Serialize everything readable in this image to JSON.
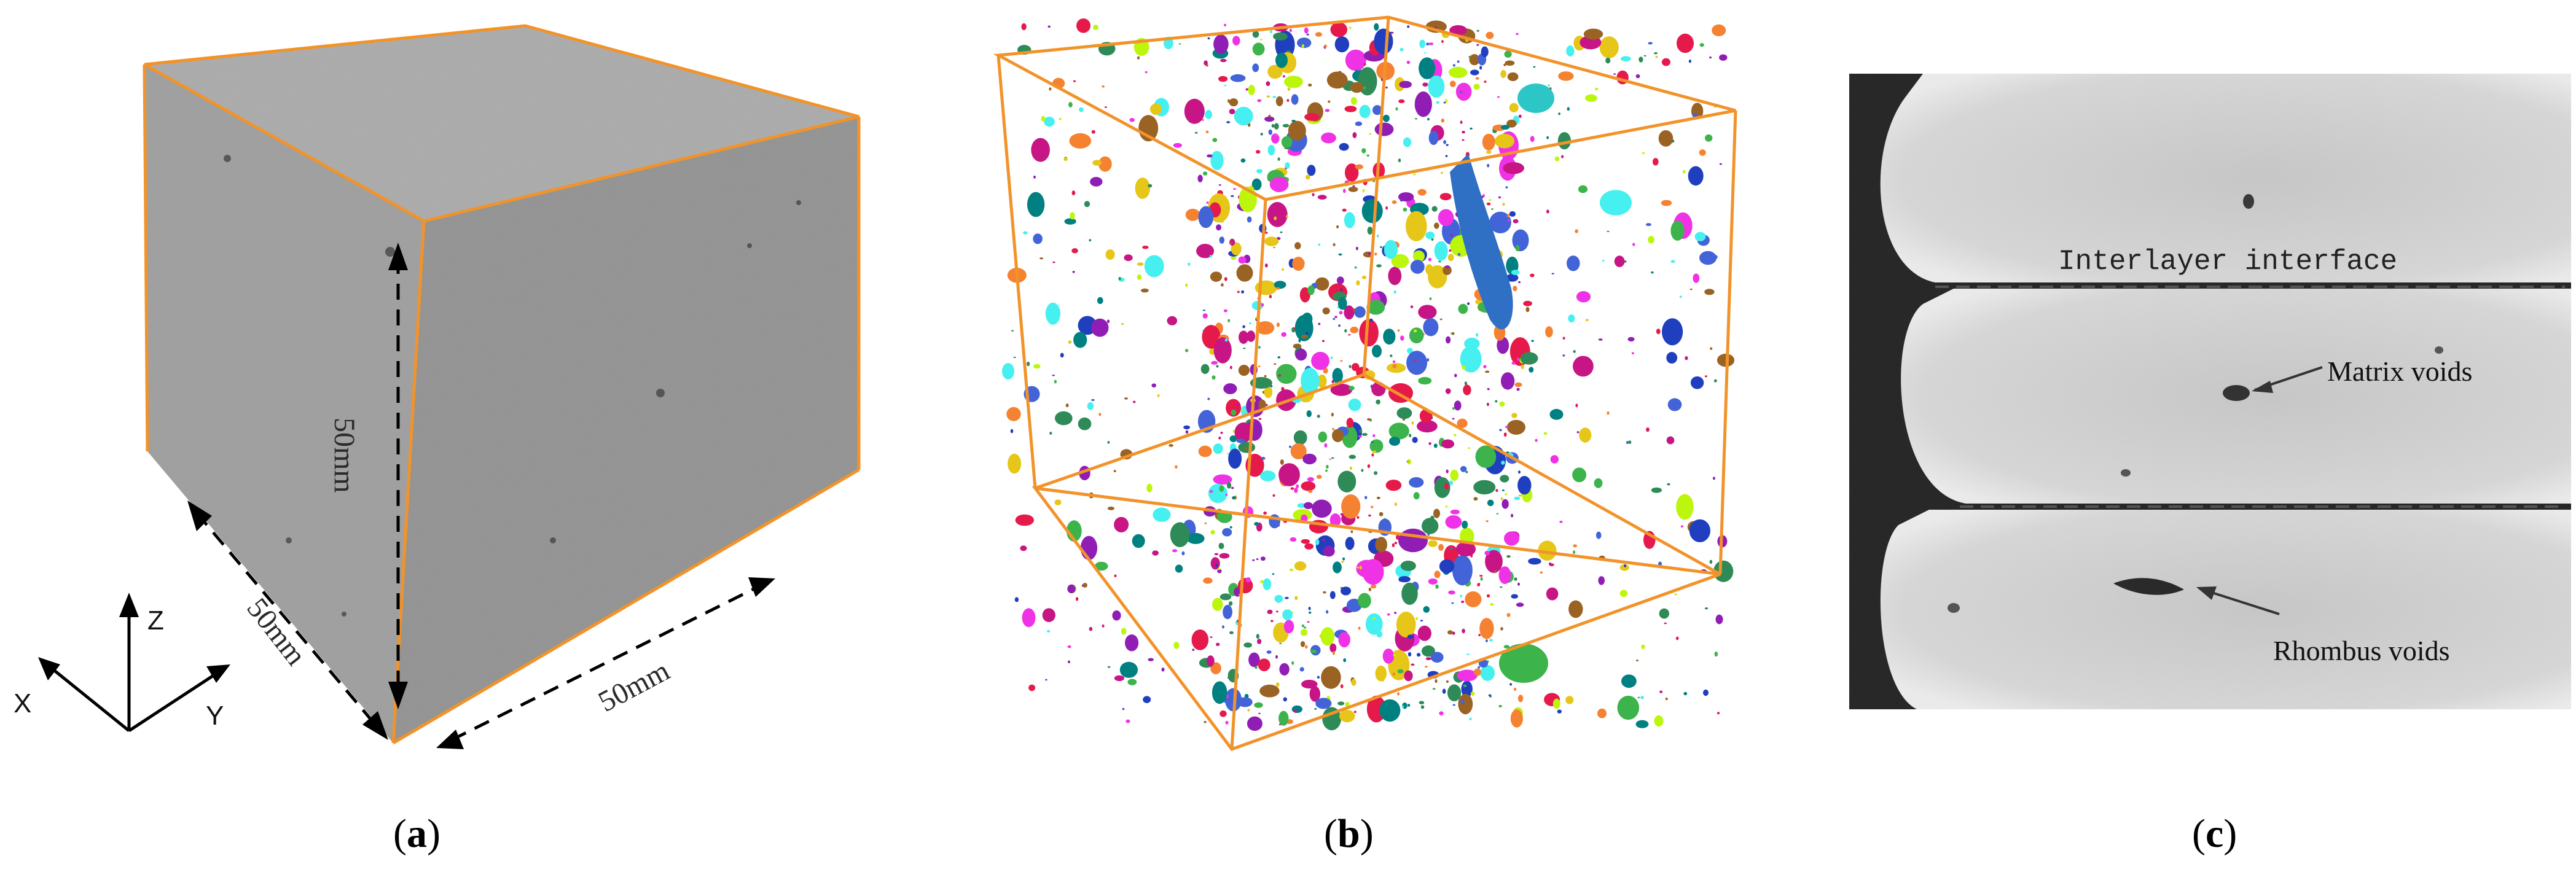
{
  "panel_a": {
    "caption_open": "(",
    "caption_letter": "a",
    "caption_close": ")",
    "dim_height": "50mm",
    "dim_depth": "50mm",
    "dim_width": "50mm",
    "axis_x": "X",
    "axis_y": "Y",
    "axis_z": "Z",
    "edge_color": "#f2932a",
    "face_color": "#9a9a9a"
  },
  "panel_b": {
    "caption_open": "(",
    "caption_letter": "b",
    "caption_close": ")",
    "edge_color": "#f2932a"
  },
  "panel_c": {
    "caption_open": "(",
    "caption_letter": "c",
    "caption_close": ")",
    "label_interface": "Interlayer interface",
    "label_matrix": "Matrix voids",
    "label_rhombus": "Rhombus voids"
  }
}
